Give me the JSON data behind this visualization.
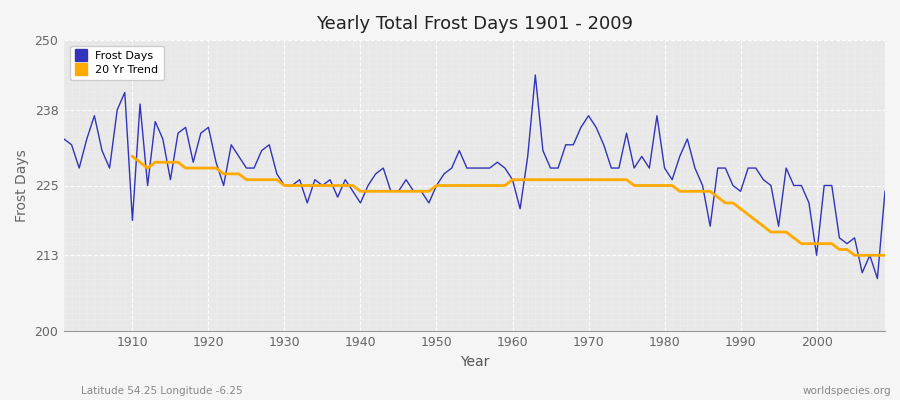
{
  "title": "Yearly Total Frost Days 1901 - 2009",
  "xlabel": "Year",
  "ylabel": "Frost Days",
  "subtitle": "Latitude 54.25 Longitude -6.25",
  "watermark": "worldspecies.org",
  "ylim": [
    200,
    250
  ],
  "yticks": [
    200,
    213,
    225,
    238,
    250
  ],
  "fig_bg_color": "#f5f5f5",
  "plot_bg_color": "#e8e8e8",
  "line_color": "#3333bb",
  "trend_color": "#ffaa00",
  "years": [
    1901,
    1902,
    1903,
    1904,
    1905,
    1906,
    1907,
    1908,
    1909,
    1910,
    1911,
    1912,
    1913,
    1914,
    1915,
    1916,
    1917,
    1918,
    1919,
    1920,
    1921,
    1922,
    1923,
    1924,
    1925,
    1926,
    1927,
    1928,
    1929,
    1930,
    1931,
    1932,
    1933,
    1934,
    1935,
    1936,
    1937,
    1938,
    1939,
    1940,
    1941,
    1942,
    1943,
    1944,
    1945,
    1946,
    1947,
    1948,
    1949,
    1950,
    1951,
    1952,
    1953,
    1954,
    1955,
    1956,
    1957,
    1958,
    1959,
    1960,
    1961,
    1962,
    1963,
    1964,
    1965,
    1966,
    1967,
    1968,
    1969,
    1970,
    1971,
    1972,
    1973,
    1974,
    1975,
    1976,
    1977,
    1978,
    1979,
    1980,
    1981,
    1982,
    1983,
    1984,
    1985,
    1986,
    1987,
    1988,
    1989,
    1990,
    1991,
    1992,
    1993,
    1994,
    1995,
    1996,
    1997,
    1998,
    1999,
    2000,
    2001,
    2002,
    2003,
    2004,
    2005,
    2006,
    2007,
    2008,
    2009
  ],
  "frost_days": [
    233,
    232,
    228,
    233,
    237,
    231,
    228,
    238,
    241,
    219,
    239,
    225,
    236,
    233,
    226,
    234,
    235,
    229,
    234,
    235,
    229,
    225,
    232,
    230,
    228,
    228,
    231,
    232,
    227,
    225,
    225,
    226,
    222,
    226,
    225,
    226,
    223,
    226,
    224,
    222,
    225,
    227,
    228,
    224,
    224,
    226,
    224,
    224,
    222,
    225,
    227,
    228,
    231,
    228,
    228,
    228,
    228,
    229,
    228,
    226,
    221,
    230,
    244,
    231,
    228,
    228,
    232,
    232,
    235,
    237,
    235,
    232,
    228,
    228,
    234,
    228,
    230,
    228,
    237,
    228,
    226,
    230,
    233,
    228,
    225,
    218,
    228,
    228,
    225,
    224,
    228,
    228,
    226,
    225,
    218,
    228,
    225,
    225,
    222,
    213,
    225,
    225,
    216,
    215,
    216,
    210,
    213,
    209,
    224
  ],
  "trend_years": [
    1910,
    1911,
    1912,
    1913,
    1914,
    1915,
    1916,
    1917,
    1918,
    1919,
    1920,
    1921,
    1922,
    1923,
    1924,
    1925,
    1926,
    1927,
    1928,
    1929,
    1930,
    1931,
    1932,
    1933,
    1934,
    1935,
    1936,
    1937,
    1938,
    1939,
    1940,
    1941,
    1942,
    1943,
    1944,
    1945,
    1946,
    1947,
    1948,
    1949,
    1950,
    1951,
    1952,
    1953,
    1954,
    1955,
    1956,
    1957,
    1958,
    1959,
    1960,
    1961,
    1962,
    1963,
    1964,
    1965,
    1966,
    1967,
    1968,
    1969,
    1970,
    1971,
    1972,
    1973,
    1974,
    1975,
    1976,
    1977,
    1978,
    1979,
    1980,
    1981,
    1982,
    1983,
    1984,
    1985,
    1986,
    1987,
    1988,
    1989,
    1990,
    1991,
    1992,
    1993,
    1994,
    1995,
    1996,
    1997,
    1998,
    1999,
    2000,
    2001,
    2002,
    2003,
    2004,
    2005,
    2006,
    2007,
    2008,
    2009
  ],
  "trend_values": [
    230,
    229,
    228,
    229,
    229,
    229,
    229,
    228,
    228,
    228,
    228,
    228,
    227,
    227,
    227,
    226,
    226,
    226,
    226,
    226,
    225,
    225,
    225,
    225,
    225,
    225,
    225,
    225,
    225,
    225,
    224,
    224,
    224,
    224,
    224,
    224,
    224,
    224,
    224,
    224,
    225,
    225,
    225,
    225,
    225,
    225,
    225,
    225,
    225,
    225,
    226,
    226,
    226,
    226,
    226,
    226,
    226,
    226,
    226,
    226,
    226,
    226,
    226,
    226,
    226,
    226,
    225,
    225,
    225,
    225,
    225,
    225,
    224,
    224,
    224,
    224,
    224,
    223,
    222,
    222,
    221,
    220,
    219,
    218,
    217,
    217,
    217,
    216,
    215,
    215,
    215,
    215,
    215,
    214,
    214,
    213,
    213,
    213,
    213,
    213
  ]
}
